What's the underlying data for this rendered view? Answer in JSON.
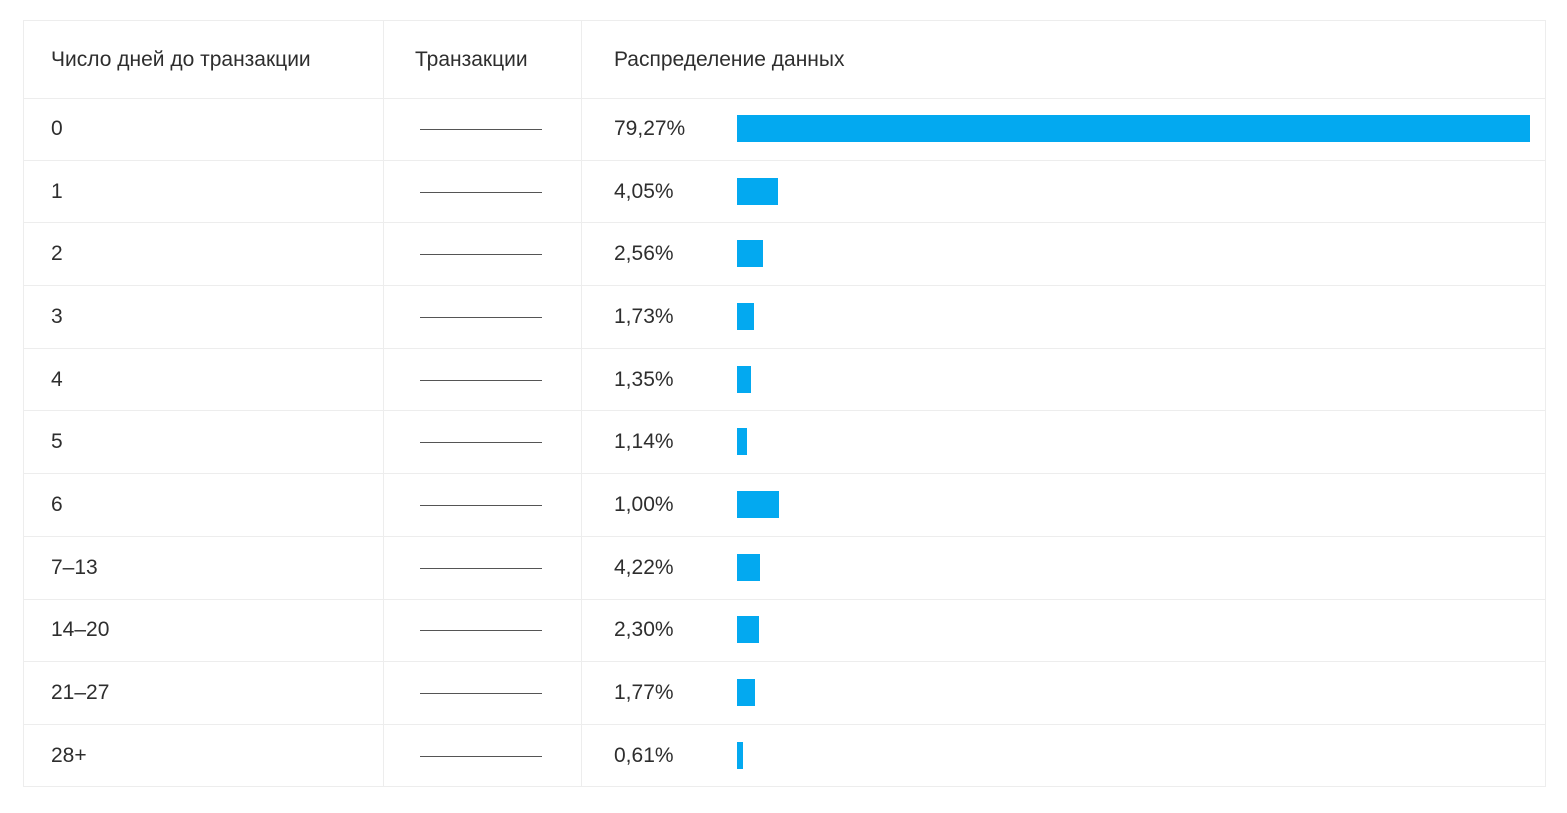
{
  "header": {
    "col_days": "Число дней до транзакции",
    "col_transactions": "Транзакции",
    "col_distribution": "Распределение данных"
  },
  "colors": {
    "bar": "#03a9f0",
    "grid": "#ededed",
    "trend_line": "#555555"
  },
  "chart_data": {
    "type": "bar",
    "orientation": "horizontal",
    "title": "",
    "xlabel": "",
    "ylabel": "",
    "categories": [
      "0",
      "1",
      "2",
      "3",
      "4",
      "5",
      "6",
      "7–13",
      "14–20",
      "21–27",
      "28+"
    ],
    "labels": [
      "79,27%",
      "4,05%",
      "2,56%",
      "1,73%",
      "1,35%",
      "1,14%",
      "1,00%",
      "4,22%",
      "2,30%",
      "1,77%",
      "0,61%"
    ],
    "values": [
      79.27,
      4.05,
      2.56,
      1.73,
      1.35,
      1.14,
      1.0,
      4.22,
      2.3,
      1.77,
      0.61
    ],
    "bar_display_values": [
      79.27,
      4.1,
      2.56,
      1.73,
      1.35,
      1.0,
      4.2,
      2.3,
      2.2,
      1.77,
      0.61
    ],
    "xlim": [
      0,
      79.27
    ],
    "grid": false,
    "legend": "none"
  }
}
